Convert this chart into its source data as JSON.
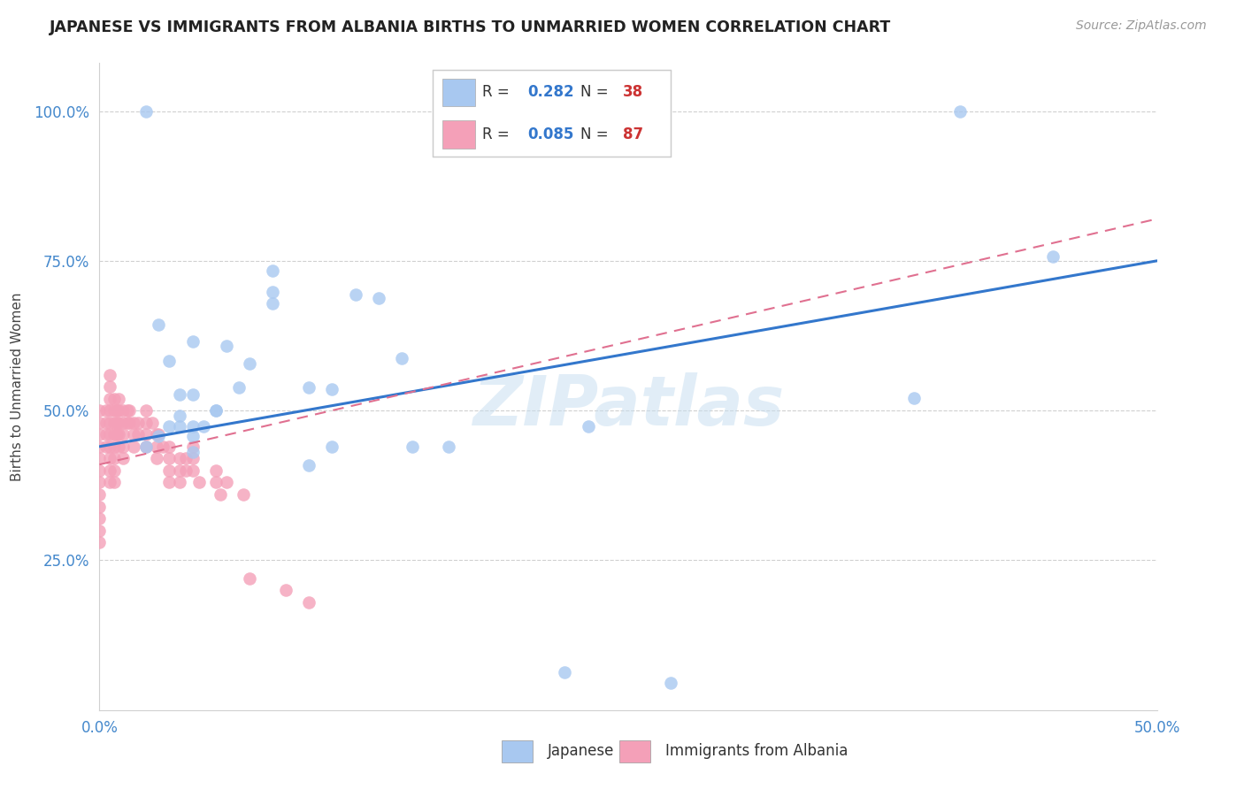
{
  "title": "JAPANESE VS IMMIGRANTS FROM ALBANIA BIRTHS TO UNMARRIED WOMEN CORRELATION CHART",
  "source": "Source: ZipAtlas.com",
  "ylabel": "Births to Unmarried Women",
  "ytick_labels": [
    "25.0%",
    "50.0%",
    "75.0%",
    "100.0%"
  ],
  "ytick_values": [
    0.25,
    0.5,
    0.75,
    1.0
  ],
  "xlim": [
    0.0,
    0.5
  ],
  "ylim": [
    0.0,
    1.08
  ],
  "legend_r_japanese": "0.282",
  "legend_n_japanese": "38",
  "legend_r_albania": "0.085",
  "legend_n_albania": "87",
  "japanese_color": "#a8c8f0",
  "albania_color": "#f4a0b8",
  "japanese_line_color": "#3377cc",
  "albania_line_color": "#e07090",
  "watermark": "ZIPatlas",
  "japanese_x": [
    0.022,
    0.044,
    0.028,
    0.033,
    0.038,
    0.033,
    0.038,
    0.044,
    0.044,
    0.044,
    0.044,
    0.055,
    0.055,
    0.06,
    0.066,
    0.071,
    0.082,
    0.082,
    0.082,
    0.099,
    0.099,
    0.11,
    0.11,
    0.121,
    0.132,
    0.143,
    0.148,
    0.165,
    0.22,
    0.231,
    0.27,
    0.385,
    0.407,
    0.451,
    0.049,
    0.028,
    0.038,
    0.022
  ],
  "japanese_y": [
    1.0,
    0.474,
    0.644,
    0.583,
    0.474,
    0.474,
    0.492,
    0.616,
    0.457,
    0.527,
    0.431,
    0.5,
    0.5,
    0.608,
    0.538,
    0.578,
    0.679,
    0.698,
    0.733,
    0.538,
    0.408,
    0.535,
    0.44,
    0.693,
    0.688,
    0.588,
    0.44,
    0.44,
    0.063,
    0.474,
    0.045,
    0.521,
    1.0,
    0.757,
    0.474,
    0.457,
    0.527,
    0.44
  ],
  "albania_x": [
    0.0,
    0.0,
    0.0,
    0.0,
    0.0,
    0.0,
    0.0,
    0.0,
    0.0,
    0.0,
    0.0,
    0.0,
    0.003,
    0.003,
    0.003,
    0.003,
    0.005,
    0.005,
    0.005,
    0.005,
    0.005,
    0.005,
    0.005,
    0.005,
    0.005,
    0.005,
    0.007,
    0.007,
    0.007,
    0.007,
    0.007,
    0.007,
    0.007,
    0.007,
    0.008,
    0.008,
    0.008,
    0.009,
    0.009,
    0.009,
    0.009,
    0.009,
    0.011,
    0.011,
    0.011,
    0.011,
    0.011,
    0.013,
    0.013,
    0.014,
    0.014,
    0.016,
    0.016,
    0.016,
    0.018,
    0.018,
    0.022,
    0.022,
    0.022,
    0.022,
    0.025,
    0.027,
    0.027,
    0.027,
    0.028,
    0.03,
    0.033,
    0.033,
    0.033,
    0.033,
    0.038,
    0.038,
    0.038,
    0.041,
    0.041,
    0.044,
    0.044,
    0.044,
    0.047,
    0.055,
    0.055,
    0.057,
    0.06,
    0.068,
    0.071,
    0.088,
    0.099
  ],
  "albania_y": [
    0.5,
    0.48,
    0.46,
    0.44,
    0.42,
    0.4,
    0.38,
    0.36,
    0.34,
    0.32,
    0.3,
    0.28,
    0.5,
    0.48,
    0.46,
    0.44,
    0.56,
    0.54,
    0.52,
    0.5,
    0.48,
    0.46,
    0.44,
    0.42,
    0.4,
    0.38,
    0.52,
    0.5,
    0.48,
    0.46,
    0.44,
    0.42,
    0.4,
    0.38,
    0.5,
    0.48,
    0.46,
    0.52,
    0.5,
    0.48,
    0.46,
    0.44,
    0.5,
    0.48,
    0.46,
    0.44,
    0.42,
    0.5,
    0.48,
    0.5,
    0.48,
    0.48,
    0.46,
    0.44,
    0.48,
    0.46,
    0.5,
    0.48,
    0.46,
    0.44,
    0.48,
    0.46,
    0.44,
    0.42,
    0.46,
    0.44,
    0.44,
    0.42,
    0.4,
    0.38,
    0.42,
    0.4,
    0.38,
    0.42,
    0.4,
    0.44,
    0.42,
    0.4,
    0.38,
    0.4,
    0.38,
    0.36,
    0.38,
    0.36,
    0.22,
    0.2,
    0.18
  ],
  "jap_line_x0": 0.0,
  "jap_line_y0": 0.44,
  "jap_line_x1": 0.5,
  "jap_line_y1": 0.75,
  "alb_line_x0": 0.0,
  "alb_line_y0": 0.41,
  "alb_line_x1": 0.5,
  "alb_line_y1": 0.82
}
